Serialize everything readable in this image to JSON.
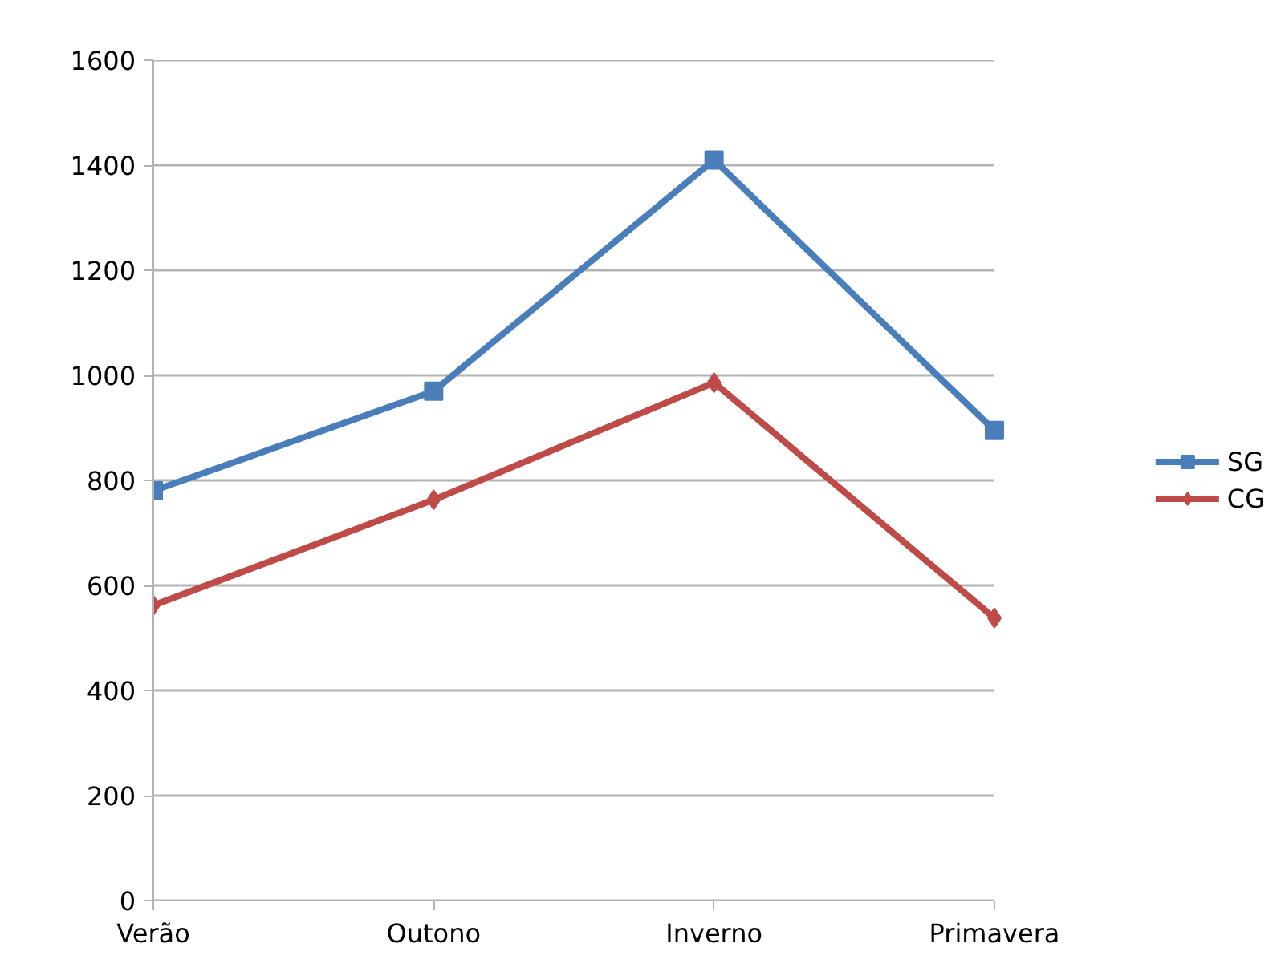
{
  "chart_data": {
    "type": "line",
    "categories": [
      "Verão",
      "Outono",
      "Inverno",
      "Primavera"
    ],
    "series": [
      {
        "name": "SG",
        "color": "#4a7ebb",
        "marker": "square",
        "values": [
          780,
          970,
          1410,
          895
        ]
      },
      {
        "name": "CG",
        "color": "#be4b48",
        "marker": "diamond",
        "values": [
          562,
          763,
          986,
          538
        ]
      }
    ],
    "ylim": [
      0,
      1600
    ],
    "yticks": [
      0,
      200,
      400,
      600,
      800,
      1000,
      1200,
      1400,
      1600
    ],
    "grid": "y",
    "legend": "right"
  }
}
